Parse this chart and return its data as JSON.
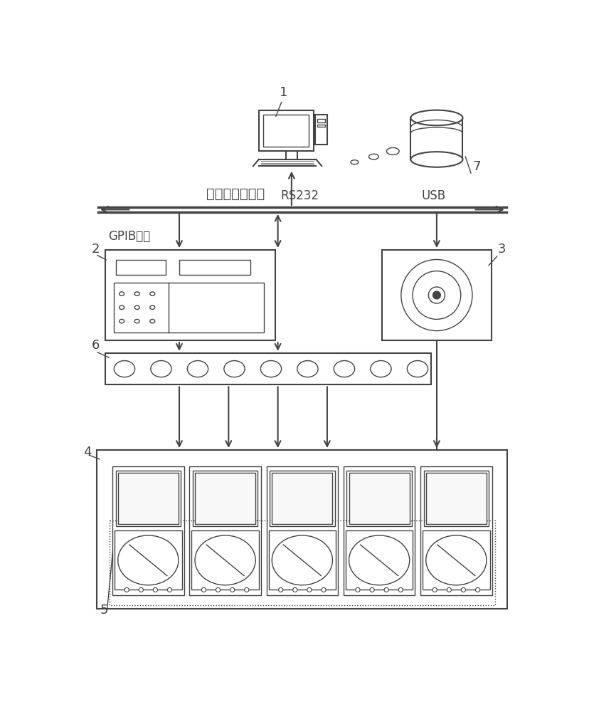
{
  "bg_color": "#ffffff",
  "line_color": "#444444",
  "fig_width": 8.29,
  "fig_height": 10.0,
  "labels": {
    "bus_label": "控制和数据总线",
    "gpib_label": "GPIB总线",
    "rs232_label": "RS232",
    "usb_label": "USB",
    "num1": "1",
    "num2": "2",
    "num3": "3",
    "num4": "4",
    "num5": "5",
    "num6": "6",
    "num7": "7"
  }
}
